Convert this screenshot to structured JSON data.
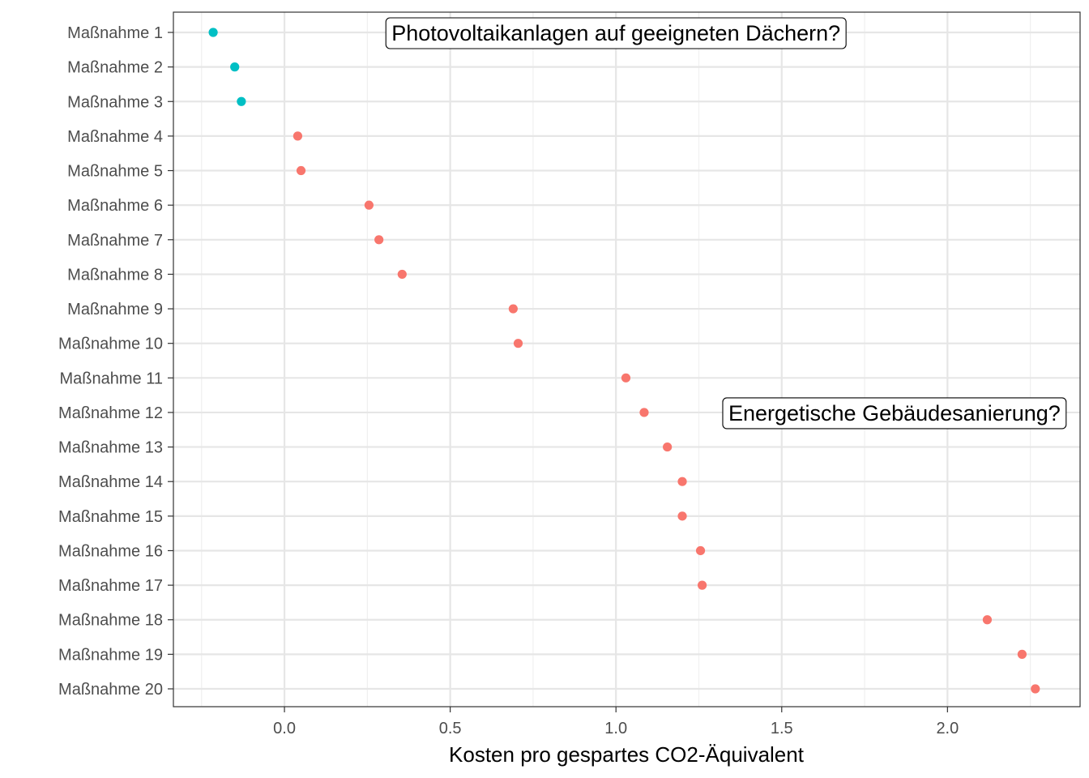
{
  "chart_data": {
    "type": "scatter",
    "xlabel": "Kosten pro gespartes CO2-Äquivalent",
    "ylabel": "",
    "xlim": [
      -0.335,
      2.4
    ],
    "x_ticks": [
      0.0,
      0.5,
      1.0,
      1.5,
      2.0
    ],
    "x_tick_labels": [
      "0.0",
      "0.5",
      "1.0",
      "1.5",
      "2.0"
    ],
    "grid": true,
    "legend": "none",
    "colors": {
      "negative": "#00BFC4",
      "positive": "#F8766D"
    },
    "categories": [
      "Maßnahme 1",
      "Maßnahme 2",
      "Maßnahme 3",
      "Maßnahme 4",
      "Maßnahme 5",
      "Maßnahme 6",
      "Maßnahme 7",
      "Maßnahme 8",
      "Maßnahme 9",
      "Maßnahme 10",
      "Maßnahme 11",
      "Maßnahme 12",
      "Maßnahme 13",
      "Maßnahme 14",
      "Maßnahme 15",
      "Maßnahme 16",
      "Maßnahme 17",
      "Maßnahme 18",
      "Maßnahme 19",
      "Maßnahme 20"
    ],
    "values": [
      -0.215,
      -0.15,
      -0.13,
      0.04,
      0.05,
      0.255,
      0.285,
      0.355,
      0.69,
      0.705,
      1.03,
      1.085,
      1.155,
      1.2,
      1.2,
      1.255,
      1.26,
      2.12,
      2.225,
      2.265
    ],
    "annotations": [
      {
        "text": "Photovoltaikanlagen auf geeigneten Dächern?",
        "x": 1.0,
        "category": "Maßnahme 1"
      },
      {
        "text": "Energetische Gebäudesanierung?",
        "x": 1.84,
        "category": "Maßnahme 12"
      }
    ]
  }
}
